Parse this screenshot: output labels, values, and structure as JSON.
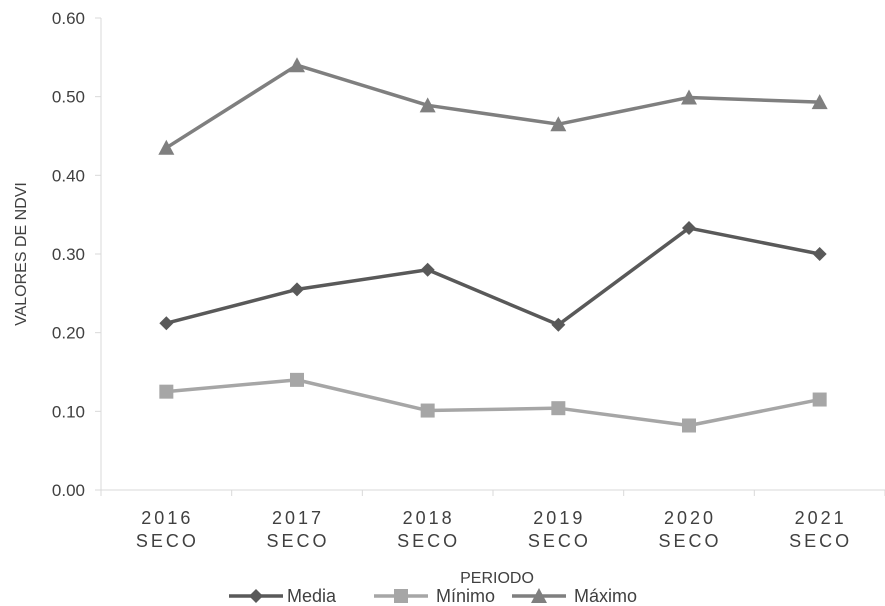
{
  "chart_data": {
    "type": "line",
    "xlabel": "PERIODO",
    "ylabel": "VALORES DE NDVI",
    "ylim": [
      0,
      0.6
    ],
    "yticks": [
      "0.00",
      "0.10",
      "0.20",
      "0.30",
      "0.40",
      "0.50",
      "0.60"
    ],
    "categories": [
      [
        "2016",
        "SECO"
      ],
      [
        "2017",
        "SECO"
      ],
      [
        "2018",
        "SECO"
      ],
      [
        "2019",
        "SECO"
      ],
      [
        "2020",
        "SECO"
      ],
      [
        "2021",
        "SECO"
      ]
    ],
    "series": [
      {
        "name": "Media",
        "marker": "diamond",
        "color": "#595959",
        "values": [
          0.212,
          0.255,
          0.28,
          0.21,
          0.333,
          0.3
        ]
      },
      {
        "name": "Mínimo",
        "marker": "square",
        "color": "#a6a6a6",
        "values": [
          0.125,
          0.14,
          0.101,
          0.104,
          0.082,
          0.115
        ]
      },
      {
        "name": "Máximo",
        "marker": "triangle",
        "color": "#7f7f7f",
        "values": [
          0.435,
          0.54,
          0.489,
          0.465,
          0.499,
          0.493
        ]
      }
    ],
    "grid": false,
    "legend": "bottom"
  }
}
